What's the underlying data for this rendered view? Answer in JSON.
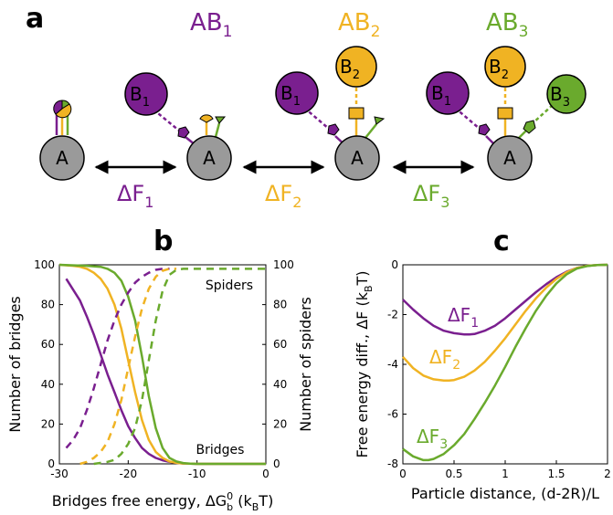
{
  "colors": {
    "purple": "#7a1f8f",
    "orange": "#f0b323",
    "green": "#6aaa2d",
    "grey": "#9a9a9a"
  },
  "panel_a": {
    "letter": "a",
    "states": [
      {
        "title": "",
        "center": "A",
        "partners": []
      },
      {
        "title": "AB1",
        "center": "A",
        "partners": [
          "B1"
        ]
      },
      {
        "title": "AB2",
        "center": "A",
        "partners": [
          "B1",
          "B2"
        ]
      },
      {
        "title": "AB3",
        "center": "A",
        "partners": [
          "B1",
          "B2",
          "B3"
        ]
      }
    ],
    "titles": {
      "ab1_base": "AB",
      "ab1_sub": "1",
      "ab2_base": "AB",
      "ab2_sub": "2",
      "ab3_base": "AB",
      "ab3_sub": "3"
    },
    "nodes": {
      "a": "A",
      "b1_base": "B",
      "b1_sub": "1",
      "b2_base": "B",
      "b2_sub": "2",
      "b3_base": "B",
      "b3_sub": "3"
    },
    "transitions": [
      {
        "base": "ΔF",
        "sub": "1",
        "color": "#7a1f8f"
      },
      {
        "base": "ΔF",
        "sub": "2",
        "color": "#f0b323"
      },
      {
        "base": "ΔF",
        "sub": "3",
        "color": "#6aaa2d"
      }
    ]
  },
  "panel_b": {
    "letter": "b",
    "ylabel_left": "Number of bridges",
    "ylabel_right": "Number of spiders",
    "xlabel": {
      "pre": "Bridges free energy, ΔG",
      "sub": "b",
      "sup": "0",
      "post": " (k",
      "unit_sub": "B",
      "unit_post": "T)"
    },
    "annotations": {
      "spiders": "Spiders",
      "bridges": "Bridges"
    }
  },
  "panel_c": {
    "letter": "c",
    "ylabel": {
      "pre": "Free energy diff., ΔF (k",
      "sub": "B",
      "post": "T)"
    },
    "xlabel": "Particle distance, (d-2R)/L",
    "curve_labels": [
      {
        "base": "ΔF",
        "sub": "1"
      },
      {
        "base": "ΔF",
        "sub": "2"
      },
      {
        "base": "ΔF",
        "sub": "3"
      }
    ]
  },
  "chart_data": [
    {
      "type": "line",
      "title": "",
      "xlabel": "Bridges free energy, ΔG_b^0 (k_B T)",
      "ylabel": "Number of bridges",
      "ylabel_right": "Number of spiders",
      "xlim": [
        -30,
        0
      ],
      "ylim": [
        0,
        100
      ],
      "xticks": [
        -30,
        -20,
        -10,
        0
      ],
      "yticks": [
        0,
        20,
        40,
        60,
        80,
        100
      ],
      "yticks_right": [
        0,
        20,
        40,
        60,
        80,
        100
      ],
      "grid": false,
      "series": [
        {
          "kind": "bridges",
          "color": "#7a1f8f",
          "dash": false,
          "x": [
            -29,
            -27,
            -26,
            -25,
            -24,
            -23,
            -22,
            -21,
            -20,
            -19,
            -18,
            -17,
            -16,
            -15,
            -14,
            -13,
            -12,
            -11,
            -10,
            -8,
            -6,
            -4,
            -2,
            0
          ],
          "y": [
            93,
            82,
            74,
            65,
            55,
            45,
            36,
            27,
            19,
            13,
            8,
            5,
            3,
            1.8,
            1,
            0.5,
            0.2,
            0.1,
            0,
            0,
            0,
            0,
            0,
            0
          ]
        },
        {
          "kind": "bridges",
          "color": "#f0b323",
          "dash": false,
          "x": [
            -30,
            -28,
            -27,
            -26,
            -25,
            -24,
            -23,
            -22,
            -21,
            -20,
            -19,
            -18,
            -17,
            -16,
            -15,
            -14,
            -13,
            -12,
            -11,
            -10,
            -8,
            -6,
            -4,
            -2,
            0
          ],
          "y": [
            100,
            99.5,
            99,
            98,
            96,
            93,
            88,
            80,
            68,
            52,
            36,
            22,
            12,
            6,
            3,
            1.2,
            0.5,
            0.2,
            0.1,
            0,
            0,
            0,
            0,
            0,
            0
          ]
        },
        {
          "kind": "bridges",
          "color": "#6aaa2d",
          "dash": false,
          "x": [
            -30,
            -26,
            -24,
            -23,
            -22,
            -21,
            -20,
            -19,
            -18,
            -17,
            -16,
            -15,
            -14,
            -13,
            -12,
            -11,
            -10,
            -8,
            -6,
            -4,
            -2,
            0
          ],
          "y": [
            100,
            99.5,
            99,
            98,
            96,
            92,
            84,
            72,
            54,
            34,
            18,
            8,
            3,
            1.2,
            0.4,
            0.1,
            0,
            0,
            0,
            0,
            0,
            0
          ]
        },
        {
          "kind": "spiders",
          "color": "#7a1f8f",
          "dash": true,
          "x": [
            -29,
            -28,
            -27,
            -26,
            -25,
            -24,
            -23,
            -22,
            -21,
            -20,
            -19,
            -18,
            -17,
            -16,
            -15,
            -14
          ],
          "y": [
            8,
            12,
            18,
            27,
            38,
            50,
            62,
            72,
            80,
            86,
            91,
            94,
            96,
            97.5,
            98,
            98
          ]
        },
        {
          "kind": "spiders",
          "color": "#f0b323",
          "dash": true,
          "x": [
            -27,
            -26,
            -25,
            -24,
            -23,
            -22,
            -21,
            -20,
            -19,
            -18,
            -17,
            -16,
            -15,
            -14,
            -13
          ],
          "y": [
            0,
            1,
            3,
            6,
            11,
            20,
            32,
            48,
            64,
            78,
            88,
            94,
            97,
            98,
            98
          ]
        },
        {
          "kind": "spiders",
          "color": "#6aaa2d",
          "dash": true,
          "x": [
            -25,
            -23,
            -22,
            -21,
            -20,
            -19,
            -18,
            -17,
            -16,
            -15,
            -14,
            -13,
            -12,
            -10,
            -8,
            -6,
            -4,
            -2,
            0
          ],
          "y": [
            0,
            1,
            2,
            5,
            10,
            18,
            32,
            52,
            72,
            87,
            95,
            97.5,
            98,
            98,
            98,
            98,
            98,
            98,
            98
          ]
        }
      ]
    },
    {
      "type": "line",
      "title": "",
      "xlabel": "Particle distance, (d-2R)/L",
      "ylabel": "Free energy diff., ΔF (k_B T)",
      "xlim": [
        0,
        2
      ],
      "ylim": [
        -8,
        0
      ],
      "xticks": [
        0,
        0.5,
        1,
        1.5,
        2
      ],
      "yticks": [
        -8,
        -6,
        -4,
        -2,
        0
      ],
      "grid": false,
      "series": [
        {
          "name": "ΔF1",
          "color": "#7a1f8f",
          "x": [
            0,
            0.1,
            0.2,
            0.3,
            0.4,
            0.5,
            0.6,
            0.65,
            0.7,
            0.8,
            0.9,
            1.0,
            1.1,
            1.2,
            1.3,
            1.4,
            1.5,
            1.6,
            1.7,
            1.8,
            1.9,
            2.0
          ],
          "y": [
            -1.4,
            -1.8,
            -2.15,
            -2.45,
            -2.65,
            -2.75,
            -2.8,
            -2.8,
            -2.78,
            -2.65,
            -2.45,
            -2.15,
            -1.8,
            -1.45,
            -1.1,
            -0.78,
            -0.5,
            -0.28,
            -0.13,
            -0.04,
            -0.01,
            0
          ]
        },
        {
          "name": "ΔF2",
          "color": "#f0b323",
          "x": [
            0,
            0.1,
            0.2,
            0.3,
            0.4,
            0.45,
            0.5,
            0.6,
            0.7,
            0.8,
            0.9,
            1.0,
            1.1,
            1.2,
            1.3,
            1.4,
            1.5,
            1.6,
            1.7,
            1.8,
            1.9,
            2.0
          ],
          "y": [
            -3.7,
            -4.15,
            -4.45,
            -4.6,
            -4.65,
            -4.65,
            -4.63,
            -4.5,
            -4.25,
            -3.9,
            -3.45,
            -2.95,
            -2.4,
            -1.85,
            -1.35,
            -0.92,
            -0.57,
            -0.3,
            -0.13,
            -0.04,
            -0.01,
            0
          ]
        },
        {
          "name": "ΔF3",
          "color": "#6aaa2d",
          "x": [
            0,
            0.1,
            0.2,
            0.25,
            0.3,
            0.4,
            0.5,
            0.6,
            0.7,
            0.8,
            0.9,
            1.0,
            1.1,
            1.2,
            1.3,
            1.4,
            1.5,
            1.6,
            1.7,
            1.8,
            1.9,
            2.0
          ],
          "y": [
            -7.4,
            -7.7,
            -7.85,
            -7.85,
            -7.8,
            -7.6,
            -7.25,
            -6.8,
            -6.2,
            -5.55,
            -4.85,
            -4.1,
            -3.3,
            -2.55,
            -1.85,
            -1.25,
            -0.75,
            -0.38,
            -0.15,
            -0.05,
            -0.01,
            0
          ]
        }
      ]
    }
  ]
}
